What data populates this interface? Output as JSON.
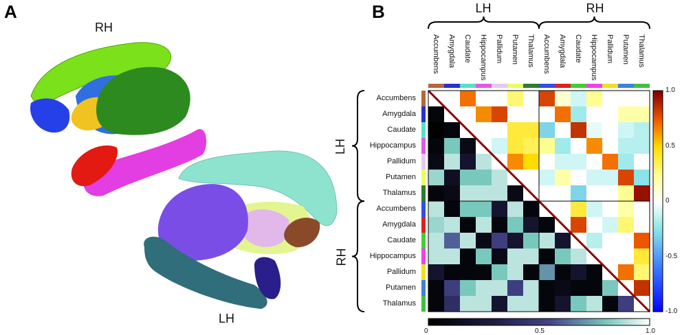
{
  "panel_a": {
    "letter": "A",
    "rh_label": "RH",
    "lh_label": "LH"
  },
  "panel_b": {
    "letter": "B",
    "group_top_left": "LH",
    "group_top_right": "RH",
    "group_left_top": "LH",
    "group_left_bottom": "RH",
    "regions": [
      "Accumbens",
      "Amygdala",
      "Caudate",
      "Hippocampus",
      "Pallidum",
      "Putamen",
      "Thalamus"
    ],
    "region_colors": [
      "#b5673a",
      "#2a2fd0",
      "#55e0c8",
      "#e05be0",
      "#e8c8f0",
      "#e8ff60",
      "#2e7b2e"
    ],
    "rh_region_colors": [
      "#3050e0",
      "#e02020",
      "#40d030",
      "#f040f0",
      "#f0e020",
      "#4080e0",
      "#40c040"
    ],
    "right_colorbar": {
      "ticks": [
        "1.0",
        "0.5",
        "0",
        "-0.5",
        "-1.0"
      ]
    },
    "bottom_colorbar": {
      "ticks": [
        "0",
        "0.5",
        "1.0"
      ]
    }
  },
  "chart_data": {
    "type": "heatmap",
    "rows": [
      "Accumbens",
      "Amygdala",
      "Caudate",
      "Hippocampus",
      "Pallidum",
      "Putamen",
      "Thalamus",
      "Accumbens",
      "Amygdala",
      "Caudate",
      "Hippocampus",
      "Pallidum",
      "Putamen",
      "Thalamus"
    ],
    "upper_triangle_scale": [
      -1.0,
      1.0
    ],
    "lower_triangle_scale": [
      0,
      1.0
    ],
    "values": [
      [
        1,
        0,
        0.7,
        0,
        0,
        0.3,
        0,
        0.8,
        0.1,
        -0.1,
        0.25,
        0,
        0,
        0
      ],
      [
        0.05,
        1,
        0,
        0.65,
        0.8,
        0,
        0,
        0,
        0.7,
        -0.2,
        0,
        0,
        0.2,
        0.2
      ],
      [
        0,
        0.05,
        1,
        0,
        0,
        0.4,
        0.4,
        -0.3,
        0,
        0.85,
        -0.05,
        0,
        -0.1,
        -0.15
      ],
      [
        0.05,
        0.8,
        0.1,
        1,
        -0.1,
        0.4,
        0.35,
        0.25,
        -0.2,
        0,
        0.65,
        0,
        -0.15,
        -0.15
      ],
      [
        0.1,
        0.9,
        0.2,
        0.9,
        1,
        0.65,
        0.5,
        0,
        -0.1,
        -0.1,
        0,
        0.7,
        -0.2,
        0
      ],
      [
        0.85,
        0.15,
        0.8,
        0.8,
        0.9,
        1,
        0,
        -0.1,
        0.2,
        0,
        -0.1,
        -0.1,
        0.8,
        -0.25
      ],
      [
        0.05,
        0.1,
        0.9,
        0.9,
        0.9,
        0.1,
        1,
        0,
        0,
        -0.3,
        0,
        0,
        0.25,
        0.95
      ],
      [
        0.9,
        0.05,
        0.8,
        0.8,
        0.2,
        0.9,
        0.05,
        1,
        0,
        0.4,
        -0.1,
        0,
        0.2,
        0
      ],
      [
        0.85,
        0.9,
        0.05,
        0.9,
        0.05,
        0.8,
        0.2,
        0.05,
        1,
        0.8,
        0,
        -0.1,
        0.3,
        0
      ],
      [
        0.9,
        0.6,
        0.9,
        0.1,
        0.5,
        0.2,
        0.8,
        0.9,
        0.2,
        1,
        -0.15,
        0,
        0,
        0.75
      ],
      [
        0.9,
        0.9,
        0.05,
        0.8,
        0.1,
        0.9,
        0.9,
        0.05,
        0.8,
        0.9,
        1,
        0,
        0,
        0.4
      ],
      [
        0.2,
        0.05,
        0.05,
        0.05,
        0.8,
        0.9,
        0.05,
        0.7,
        0.05,
        0.2,
        0.05,
        1,
        0.7,
        0.3
      ],
      [
        0.05,
        0.5,
        0.8,
        0.9,
        0.9,
        0.5,
        0.9,
        0.05,
        0.1,
        0.05,
        0.05,
        0.8,
        1,
        0.85
      ],
      [
        0.05,
        0.4,
        0.9,
        0.9,
        0.2,
        0.9,
        0.9,
        0.05,
        0.2,
        0.8,
        0.9,
        0.05,
        0.5,
        1
      ]
    ]
  }
}
